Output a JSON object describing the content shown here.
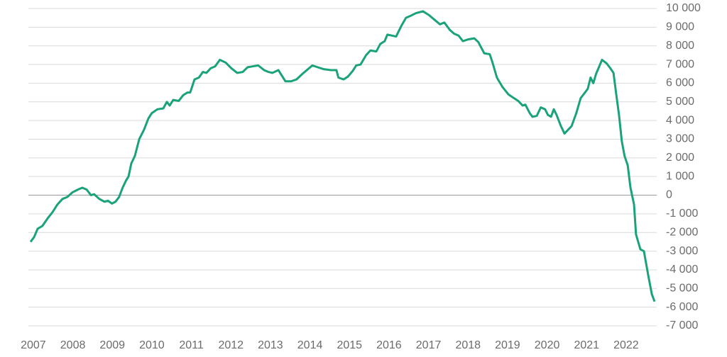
{
  "chart_data": {
    "type": "line",
    "x": [
      2006.93,
      2007.02,
      2007.11,
      2007.23,
      2007.36,
      2007.49,
      2007.61,
      2007.74,
      2007.86,
      2007.99,
      2008.13,
      2008.24,
      2008.35,
      2008.46,
      2008.54,
      2008.67,
      2008.8,
      2008.89,
      2008.99,
      2009.08,
      2009.17,
      2009.26,
      2009.35,
      2009.41,
      2009.48,
      2009.57,
      2009.68,
      2009.8,
      2009.91,
      2010.0,
      2010.14,
      2010.29,
      2010.38,
      2010.45,
      2010.54,
      2010.68,
      2010.79,
      2010.9,
      2010.97,
      2011.08,
      2011.19,
      2011.29,
      2011.38,
      2011.49,
      2011.6,
      2011.72,
      2011.87,
      2012.01,
      2012.16,
      2012.3,
      2012.42,
      2012.55,
      2012.69,
      2012.84,
      2012.95,
      2013.05,
      2013.2,
      2013.38,
      2013.52,
      2013.66,
      2013.81,
      2013.95,
      2014.06,
      2014.2,
      2014.35,
      2014.53,
      2014.67,
      2014.72,
      2014.85,
      2014.96,
      2015.08,
      2015.17,
      2015.28,
      2015.42,
      2015.53,
      2015.68,
      2015.78,
      2015.89,
      2015.96,
      2016.07,
      2016.18,
      2016.32,
      2016.43,
      2016.54,
      2016.68,
      2016.86,
      2017.01,
      2017.15,
      2017.29,
      2017.4,
      2017.54,
      2017.65,
      2017.76,
      2017.87,
      2018.01,
      2018.16,
      2018.26,
      2018.41,
      2018.55,
      2018.62,
      2018.73,
      2018.87,
      2019.02,
      2019.16,
      2019.27,
      2019.38,
      2019.45,
      2019.56,
      2019.63,
      2019.74,
      2019.84,
      2019.95,
      2020.02,
      2020.1,
      2020.17,
      2020.24,
      2020.35,
      2020.44,
      2020.53,
      2020.62,
      2020.74,
      2020.85,
      2020.96,
      2021.03,
      2021.1,
      2021.17,
      2021.24,
      2021.39,
      2021.51,
      2021.6,
      2021.68,
      2021.75,
      2021.82,
      2021.89,
      2021.96,
      2022.04,
      2022.11,
      2022.2,
      2022.25,
      2022.36,
      2022.45,
      2022.56,
      2022.65,
      2022.72
    ],
    "series": [
      {
        "color": "#1aa37a",
        "values": [
          -2500,
          -2250,
          -1800,
          -1650,
          -1250,
          -900,
          -500,
          -200,
          -100,
          150,
          300,
          400,
          300,
          0,
          50,
          -200,
          -350,
          -300,
          -450,
          -350,
          -100,
          400,
          800,
          1000,
          1700,
          2100,
          3000,
          3500,
          4100,
          4400,
          4600,
          4650,
          5000,
          4800,
          5100,
          5050,
          5350,
          5500,
          5500,
          6200,
          6300,
          6600,
          6550,
          6800,
          6900,
          7250,
          7100,
          6800,
          6550,
          6600,
          6850,
          6900,
          6950,
          6700,
          6600,
          6550,
          6700,
          6100,
          6100,
          6200,
          6500,
          6750,
          6950,
          6850,
          6750,
          6700,
          6700,
          6300,
          6200,
          6350,
          6650,
          6950,
          7000,
          7500,
          7750,
          7700,
          8100,
          8250,
          8600,
          8550,
          8500,
          9100,
          9500,
          9600,
          9750,
          9850,
          9650,
          9400,
          9150,
          9250,
          8850,
          8650,
          8550,
          8250,
          8350,
          8400,
          8200,
          7600,
          7550,
          7100,
          6300,
          5800,
          5400,
          5200,
          5050,
          4800,
          4850,
          4400,
          4200,
          4250,
          4700,
          4600,
          4300,
          4200,
          4600,
          4300,
          3700,
          3300,
          3500,
          3700,
          4400,
          5200,
          5500,
          5700,
          6300,
          6000,
          6500,
          7250,
          7050,
          6800,
          6550,
          5400,
          4300,
          2900,
          2100,
          1600,
          400,
          -500,
          -2100,
          -2900,
          -3000,
          -4300,
          -5300,
          -5700
        ]
      }
    ],
    "xlim": [
      2006.93,
      2022.72
    ],
    "xticks": [
      2007,
      2008,
      2009,
      2010,
      2011,
      2012,
      2013,
      2014,
      2015,
      2016,
      2017,
      2018,
      2019,
      2020,
      2021,
      2022
    ],
    "ylim": [
      -7000,
      10000
    ],
    "yticks": [
      {
        "value": -7000,
        "label": "-7 000"
      },
      {
        "value": -6000,
        "label": "-6 000"
      },
      {
        "value": -5000,
        "label": "-5 000"
      },
      {
        "value": -4000,
        "label": "-4 000"
      },
      {
        "value": -3000,
        "label": "-3 000"
      },
      {
        "value": -2000,
        "label": "-2 000"
      },
      {
        "value": -1000,
        "label": "-1 000"
      },
      0,
      {
        "value": 1000,
        "label": "1 000"
      },
      {
        "value": 2000,
        "label": "2 000"
      },
      {
        "value": 3000,
        "label": "3 000"
      },
      {
        "value": 4000,
        "label": "4 000"
      },
      {
        "value": 5000,
        "label": "5 000"
      },
      {
        "value": 6000,
        "label": "6 000"
      },
      {
        "value": 7000,
        "label": "7 000"
      },
      {
        "value": 8000,
        "label": "8 000"
      },
      {
        "value": 9000,
        "label": "9 000"
      },
      {
        "value": 10000,
        "label": "10 000"
      }
    ],
    "grid": true
  }
}
